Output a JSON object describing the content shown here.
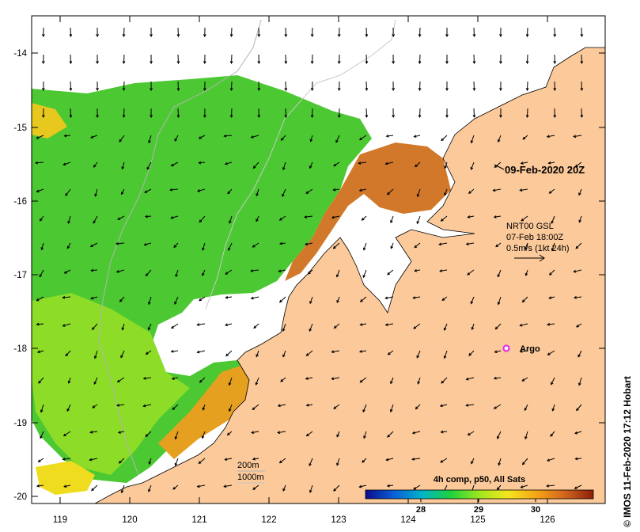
{
  "map": {
    "title_date": "09-Feb-2020 20Z",
    "credit": "© IMOS 11-Feb-2020 17:12 Hobart",
    "longitude_ticks": [
      "119",
      "120",
      "121",
      "122",
      "123",
      "124",
      "125",
      "126"
    ],
    "latitude_ticks": [
      "-14",
      "-15",
      "-16",
      "-17",
      "-18",
      "-19",
      "-20"
    ],
    "current_legend": {
      "line1": "NRT00 GSL",
      "line2": "07-Feb 18:00Z",
      "line3": "0.5m/s (1kt 24h)"
    },
    "argo_label": "Argo",
    "depth_legend": {
      "contour1": "200m",
      "contour2": "1000m"
    },
    "colorbar": {
      "title": "4h comp, p50, All Sats",
      "tick_labels": [
        "28",
        "29",
        "30"
      ],
      "colors": [
        "#0c0c8c",
        "#0a5fd8",
        "#00b4c8",
        "#1ed23c",
        "#a0e61e",
        "#f5e61e",
        "#f5a514",
        "#d2641e",
        "#8c1e0a"
      ]
    },
    "colors": {
      "land": "#fbc99a",
      "coast": "#000000",
      "argo_marker": "#e632e6",
      "depth_contour": "#b4b4b4"
    }
  }
}
